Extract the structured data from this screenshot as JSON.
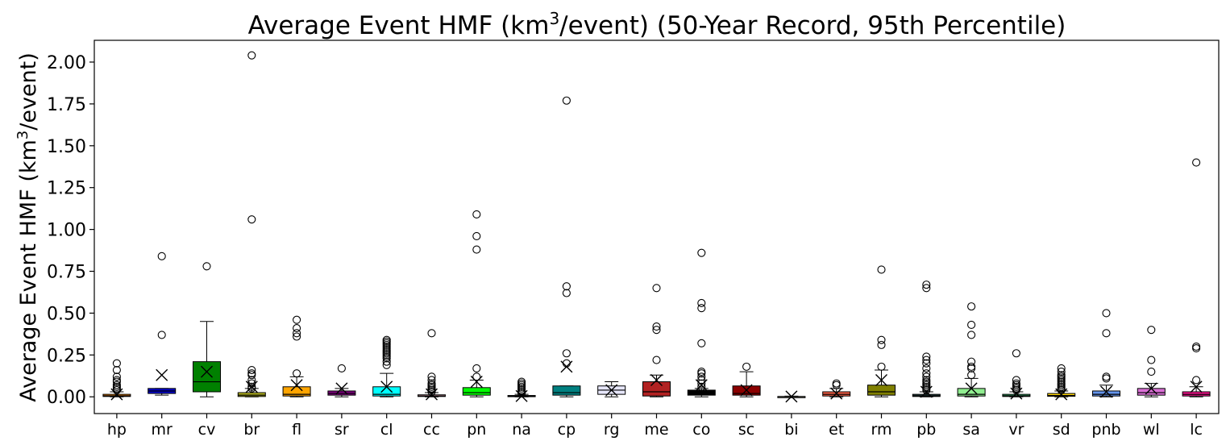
{
  "chart_data": {
    "type": "box",
    "title_prefix": "Average Event HMF (km",
    "title_sup": "3",
    "title_suffix": "/event) (50-Year Record, 95th Percentile)",
    "ylabel_prefix": "Average Event HMF (km",
    "ylabel_sup": "3",
    "ylabel_suffix": "/event)",
    "xlabel": "",
    "ylim": [
      -0.1,
      2.13
    ],
    "yticks": [
      0.0,
      0.25,
      0.5,
      0.75,
      1.0,
      1.25,
      1.5,
      1.75,
      2.0
    ],
    "ytick_labels": [
      "0.00",
      "0.25",
      "0.50",
      "0.75",
      "1.00",
      "1.25",
      "1.50",
      "1.75",
      "2.00"
    ],
    "grid": false,
    "categories": [
      "hp",
      "mr",
      "cv",
      "br",
      "fl",
      "sr",
      "cl",
      "cc",
      "pn",
      "na",
      "cp",
      "rg",
      "me",
      "co",
      "sc",
      "bi",
      "et",
      "rm",
      "pb",
      "sa",
      "vr",
      "sd",
      "pnb",
      "wl",
      "lc"
    ],
    "boxes": [
      {
        "category": "hp",
        "color": "#ff8c00",
        "whislo": 0.0,
        "q1": 0.002,
        "med": 0.006,
        "q3": 0.015,
        "whishi": 0.03,
        "mean": 0.015,
        "fliers": [
          0.04,
          0.05,
          0.06,
          0.07,
          0.09,
          0.1,
          0.12,
          0.16,
          0.2
        ]
      },
      {
        "category": "mr",
        "color": "#0000cd",
        "whislo": 0.01,
        "q1": 0.02,
        "med": 0.035,
        "q3": 0.05,
        "whishi": 0.05,
        "mean": 0.13,
        "fliers": [
          0.37,
          0.84
        ]
      },
      {
        "category": "cv",
        "color": "#008000",
        "whislo": 0.0,
        "q1": 0.03,
        "med": 0.09,
        "q3": 0.21,
        "whishi": 0.45,
        "mean": 0.15,
        "fliers": [
          0.78
        ]
      },
      {
        "category": "br",
        "color": "#b8b820",
        "whislo": 0.0,
        "q1": 0.002,
        "med": 0.01,
        "q3": 0.025,
        "whishi": 0.05,
        "mean": 0.06,
        "fliers": [
          0.05,
          0.06,
          0.08,
          0.1,
          0.13,
          0.14,
          0.16,
          1.06,
          2.04
        ]
      },
      {
        "category": "fl",
        "color": "#ffa500",
        "whislo": 0.0,
        "q1": 0.005,
        "med": 0.015,
        "q3": 0.06,
        "whishi": 0.12,
        "mean": 0.07,
        "fliers": [
          0.14,
          0.36,
          0.38,
          0.41,
          0.46
        ]
      },
      {
        "category": "sr",
        "color": "#800080",
        "whislo": 0.0,
        "q1": 0.01,
        "med": 0.02,
        "q3": 0.035,
        "whishi": 0.05,
        "mean": 0.05,
        "fliers": [
          0.17
        ]
      },
      {
        "category": "cl",
        "color": "#00ffff",
        "whislo": 0.0,
        "q1": 0.005,
        "med": 0.015,
        "q3": 0.06,
        "whishi": 0.14,
        "mean": 0.06,
        "fliers": [
          0.19,
          0.21,
          0.23,
          0.24,
          0.25,
          0.26,
          0.27,
          0.28,
          0.29,
          0.3,
          0.31,
          0.32,
          0.33,
          0.34
        ]
      },
      {
        "category": "cc",
        "color": "#ffb6c1",
        "whislo": 0.0,
        "q1": 0.002,
        "med": 0.005,
        "q3": 0.012,
        "whishi": 0.025,
        "mean": 0.015,
        "fliers": [
          0.03,
          0.04,
          0.05,
          0.06,
          0.07,
          0.08,
          0.1,
          0.12,
          0.38
        ]
      },
      {
        "category": "pn",
        "color": "#00ff00",
        "whislo": 0.0,
        "q1": 0.01,
        "med": 0.025,
        "q3": 0.055,
        "whishi": 0.1,
        "mean": 0.09,
        "fliers": [
          0.12,
          0.17,
          0.88,
          0.96,
          1.09
        ]
      },
      {
        "category": "na",
        "color": "#a9a9a9",
        "whislo": 0.0,
        "q1": 0.001,
        "med": 0.003,
        "q3": 0.008,
        "whishi": 0.015,
        "mean": 0.005,
        "fliers": [
          0.02,
          0.03,
          0.04,
          0.05,
          0.06,
          0.07,
          0.08,
          0.09
        ]
      },
      {
        "category": "cp",
        "color": "#008080",
        "whislo": 0.0,
        "q1": 0.01,
        "med": 0.025,
        "q3": 0.065,
        "whishi": 0.065,
        "mean": 0.18,
        "fliers": [
          0.2,
          0.26,
          0.62,
          0.66,
          1.77
        ]
      },
      {
        "category": "rg",
        "color": "#e6e6fa",
        "whislo": 0.0,
        "q1": 0.015,
        "med": 0.04,
        "q3": 0.065,
        "whishi": 0.09,
        "mean": 0.04,
        "fliers": []
      },
      {
        "category": "me",
        "color": "#b22222",
        "whislo": 0.0,
        "q1": 0.005,
        "med": 0.03,
        "q3": 0.09,
        "whishi": 0.13,
        "mean": 0.1,
        "fliers": [
          0.22,
          0.4,
          0.42,
          0.65
        ]
      },
      {
        "category": "co",
        "color": "#000000",
        "whislo": 0.0,
        "q1": 0.01,
        "med": 0.02,
        "q3": 0.04,
        "whishi": 0.05,
        "mean": 0.07,
        "fliers": [
          0.06,
          0.08,
          0.1,
          0.12,
          0.14,
          0.15,
          0.32,
          0.53,
          0.56,
          0.86
        ]
      },
      {
        "category": "sc",
        "color": "#8b0000",
        "whislo": 0.0,
        "q1": 0.01,
        "med": 0.02,
        "q3": 0.065,
        "whishi": 0.15,
        "mean": 0.04,
        "fliers": [
          0.18
        ]
      },
      {
        "category": "bi",
        "color": "#f5f5dc",
        "whislo": 0.0,
        "q1": 0.0,
        "med": 0.001,
        "q3": 0.002,
        "whishi": 0.004,
        "mean": 0.002,
        "fliers": []
      },
      {
        "category": "et",
        "color": "#ff6347",
        "whislo": 0.0,
        "q1": 0.005,
        "med": 0.015,
        "q3": 0.03,
        "whishi": 0.05,
        "mean": 0.02,
        "fliers": [
          0.07,
          0.08
        ]
      },
      {
        "category": "rm",
        "color": "#808000",
        "whislo": 0.0,
        "q1": 0.01,
        "med": 0.03,
        "q3": 0.07,
        "whishi": 0.16,
        "mean": 0.1,
        "fliers": [
          0.18,
          0.31,
          0.34,
          0.76
        ]
      },
      {
        "category": "pb",
        "color": "#2f4f4f",
        "whislo": 0.0,
        "q1": 0.002,
        "med": 0.006,
        "q3": 0.015,
        "whishi": 0.03,
        "mean": 0.03,
        "fliers": [
          0.04,
          0.05,
          0.06,
          0.07,
          0.08,
          0.09,
          0.1,
          0.12,
          0.14,
          0.17,
          0.2,
          0.22,
          0.24,
          0.65,
          0.67
        ]
      },
      {
        "category": "sa",
        "color": "#90ee90",
        "whislo": 0.0,
        "q1": 0.005,
        "med": 0.015,
        "q3": 0.05,
        "whishi": 0.11,
        "mean": 0.05,
        "fliers": [
          0.13,
          0.17,
          0.18,
          0.21,
          0.37,
          0.43,
          0.54
        ]
      },
      {
        "category": "vr",
        "color": "#3cb371",
        "whislo": 0.0,
        "q1": 0.002,
        "med": 0.006,
        "q3": 0.015,
        "whishi": 0.03,
        "mean": 0.02,
        "fliers": [
          0.04,
          0.05,
          0.06,
          0.07,
          0.08,
          0.1,
          0.26
        ]
      },
      {
        "category": "sd",
        "color": "#ffd700",
        "whislo": 0.0,
        "q1": 0.003,
        "med": 0.008,
        "q3": 0.02,
        "whishi": 0.035,
        "mean": 0.015,
        "fliers": [
          0.04,
          0.05,
          0.06,
          0.07,
          0.08,
          0.09,
          0.1,
          0.11,
          0.12,
          0.13,
          0.15,
          0.17
        ]
      },
      {
        "category": "pnb",
        "color": "#6495ed",
        "whislo": 0.0,
        "q1": 0.005,
        "med": 0.015,
        "q3": 0.035,
        "whishi": 0.07,
        "mean": 0.03,
        "fliers": [
          0.11,
          0.12,
          0.38,
          0.5
        ]
      },
      {
        "category": "wl",
        "color": "#da70d6",
        "whislo": 0.0,
        "q1": 0.01,
        "med": 0.025,
        "q3": 0.05,
        "whishi": 0.08,
        "mean": 0.05,
        "fliers": [
          0.15,
          0.22,
          0.4
        ]
      },
      {
        "category": "lc",
        "color": "#ff1493",
        "whislo": 0.0,
        "q1": 0.005,
        "med": 0.015,
        "q3": 0.03,
        "whishi": 0.06,
        "mean": 0.06,
        "fliers": [
          0.1,
          0.29,
          0.3,
          1.4
        ]
      }
    ]
  }
}
